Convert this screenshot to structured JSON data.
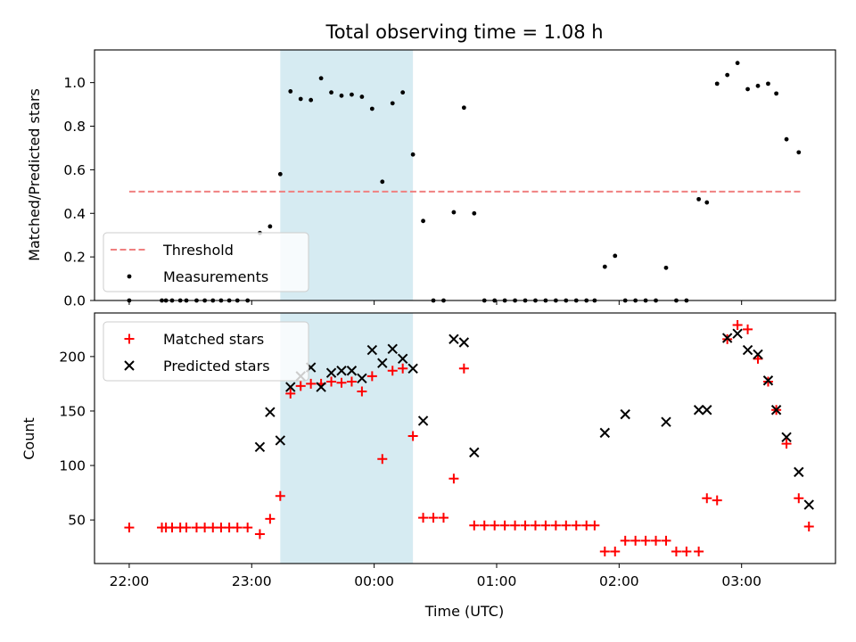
{
  "chart_data": {
    "title": "Total observing time = 1.08 h",
    "xlabel": "Time (UTC)",
    "x_ticks": [
      "22:00",
      "23:00",
      "00:00",
      "01:00",
      "02:00",
      "03:00"
    ],
    "x_tick_minutes": [
      0,
      60,
      120,
      180,
      240,
      300
    ],
    "xlim_minutes": [
      -17,
      346
    ],
    "highlight_span_minutes": [
      74,
      139
    ],
    "highlight_color": "#add8e6",
    "top": {
      "type": "scatter",
      "ylabel": "Matched/Predicted stars",
      "ylim": [
        0,
        1.15
      ],
      "y_ticks": [
        0.0,
        0.2,
        0.4,
        0.6,
        0.8,
        1.0
      ],
      "y_tick_labels": [
        "0.0",
        "0.2",
        "0.4",
        "0.6",
        "0.8",
        "1.0"
      ],
      "threshold": {
        "name": "Threshold",
        "value": 0.5,
        "x_range": [
          0,
          330
        ],
        "color": "#f08080"
      },
      "series": [
        {
          "name": "Measurements",
          "color": "#000000",
          "points": [
            [
              0,
              0.0
            ],
            [
              16,
              0.0
            ],
            [
              18,
              0.0
            ],
            [
              21,
              0.0
            ],
            [
              25,
              0.0
            ],
            [
              28,
              0.0
            ],
            [
              33,
              0.0
            ],
            [
              37,
              0.0
            ],
            [
              41,
              0.0
            ],
            [
              45,
              0.0
            ],
            [
              49,
              0.0
            ],
            [
              53,
              0.0
            ],
            [
              58,
              0.0
            ],
            [
              64,
              0.31
            ],
            [
              69,
              0.34
            ],
            [
              74,
              0.58
            ],
            [
              79,
              0.96
            ],
            [
              84,
              0.925
            ],
            [
              89,
              0.92
            ],
            [
              94,
              1.02
            ],
            [
              99,
              0.955
            ],
            [
              104,
              0.94
            ],
            [
              109,
              0.945
            ],
            [
              114,
              0.935
            ],
            [
              119,
              0.88
            ],
            [
              124,
              0.545
            ],
            [
              129,
              0.905
            ],
            [
              134,
              0.955
            ],
            [
              139,
              0.67
            ],
            [
              144,
              0.365
            ],
            [
              149,
              0.0
            ],
            [
              154,
              0.0
            ],
            [
              159,
              0.405
            ],
            [
              164,
              0.885
            ],
            [
              169,
              0.4
            ],
            [
              174,
              0.0
            ],
            [
              179,
              0.0
            ],
            [
              184,
              0.0
            ],
            [
              189,
              0.0
            ],
            [
              194,
              0.0
            ],
            [
              199,
              0.0
            ],
            [
              204,
              0.0
            ],
            [
              209,
              0.0
            ],
            [
              214,
              0.0
            ],
            [
              219,
              0.0
            ],
            [
              224,
              0.0
            ],
            [
              228,
              0.0
            ],
            [
              233,
              0.155
            ],
            [
              238,
              0.205
            ],
            [
              243,
              0.0
            ],
            [
              248,
              0.0
            ],
            [
              253,
              0.0
            ],
            [
              258,
              0.0
            ],
            [
              263,
              0.15
            ],
            [
              268,
              0.0
            ],
            [
              273,
              0.0
            ],
            [
              279,
              0.465
            ],
            [
              283,
              0.45
            ],
            [
              288,
              0.995
            ],
            [
              293,
              1.035
            ],
            [
              298,
              1.09
            ],
            [
              303,
              0.97
            ],
            [
              308,
              0.985
            ],
            [
              313,
              0.995
            ],
            [
              317,
              0.95
            ],
            [
              322,
              0.74
            ],
            [
              328,
              0.68
            ]
          ]
        }
      ],
      "legend": [
        "Threshold",
        "Measurements"
      ],
      "legend_loc": "lower-left"
    },
    "bottom": {
      "type": "scatter",
      "ylabel": "Count",
      "ylim": [
        10,
        240
      ],
      "y_ticks": [
        50,
        100,
        150,
        200
      ],
      "y_tick_labels": [
        "50",
        "100",
        "150",
        "200"
      ],
      "series": [
        {
          "name": "Matched stars",
          "marker": "plus",
          "color": "#ff0000",
          "points": [
            [
              0,
              43
            ],
            [
              16,
              43
            ],
            [
              18,
              43
            ],
            [
              21,
              43
            ],
            [
              25,
              43
            ],
            [
              28,
              43
            ],
            [
              33,
              43
            ],
            [
              37,
              43
            ],
            [
              41,
              43
            ],
            [
              45,
              43
            ],
            [
              49,
              43
            ],
            [
              53,
              43
            ],
            [
              58,
              43
            ],
            [
              64,
              37
            ],
            [
              69,
              51
            ],
            [
              74,
              72
            ],
            [
              79,
              166
            ],
            [
              84,
              173
            ],
            [
              89,
              175
            ],
            [
              94,
              175
            ],
            [
              99,
              177
            ],
            [
              104,
              176
            ],
            [
              109,
              177
            ],
            [
              114,
              168
            ],
            [
              119,
              182
            ],
            [
              124,
              106
            ],
            [
              129,
              187
            ],
            [
              134,
              189
            ],
            [
              139,
              127
            ],
            [
              144,
              52
            ],
            [
              149,
              52
            ],
            [
              154,
              52
            ],
            [
              159,
              88
            ],
            [
              164,
              189
            ],
            [
              169,
              45
            ],
            [
              174,
              45
            ],
            [
              179,
              45
            ],
            [
              184,
              45
            ],
            [
              189,
              45
            ],
            [
              194,
              45
            ],
            [
              199,
              45
            ],
            [
              204,
              45
            ],
            [
              209,
              45
            ],
            [
              214,
              45
            ],
            [
              219,
              45
            ],
            [
              224,
              45
            ],
            [
              228,
              45
            ],
            [
              233,
              21
            ],
            [
              238,
              21
            ],
            [
              243,
              31
            ],
            [
              248,
              31
            ],
            [
              253,
              31
            ],
            [
              258,
              31
            ],
            [
              263,
              31
            ],
            [
              268,
              21
            ],
            [
              273,
              21
            ],
            [
              279,
              21
            ],
            [
              283,
              70
            ],
            [
              288,
              68
            ],
            [
              293,
              216
            ],
            [
              298,
              229
            ],
            [
              303,
              225
            ],
            [
              308,
              198
            ],
            [
              313,
              177
            ],
            [
              317,
              151
            ],
            [
              322,
              120
            ],
            [
              328,
              70
            ],
            [
              333,
              44
            ]
          ]
        },
        {
          "name": "Predicted stars",
          "marker": "x",
          "color": "#000000",
          "points": [
            [
              64,
              117
            ],
            [
              69,
              149
            ],
            [
              74,
              123
            ],
            [
              79,
              172
            ],
            [
              84,
              182
            ],
            [
              89,
              190
            ],
            [
              94,
              172
            ],
            [
              99,
              185
            ],
            [
              104,
              187
            ],
            [
              109,
              187
            ],
            [
              114,
              180
            ],
            [
              119,
              206
            ],
            [
              124,
              194
            ],
            [
              129,
              207
            ],
            [
              134,
              198
            ],
            [
              139,
              189
            ],
            [
              144,
              141
            ],
            [
              159,
              216
            ],
            [
              164,
              213
            ],
            [
              169,
              112
            ],
            [
              233,
              130
            ],
            [
              243,
              147
            ],
            [
              263,
              140
            ],
            [
              279,
              151
            ],
            [
              283,
              151
            ],
            [
              293,
              217
            ],
            [
              298,
              221
            ],
            [
              303,
              206
            ],
            [
              308,
              202
            ],
            [
              313,
              178
            ],
            [
              317,
              151
            ],
            [
              322,
              126
            ],
            [
              328,
              94
            ],
            [
              333,
              64
            ]
          ]
        }
      ],
      "legend": [
        "Matched stars",
        "Predicted stars"
      ],
      "legend_loc": "upper-left"
    }
  }
}
